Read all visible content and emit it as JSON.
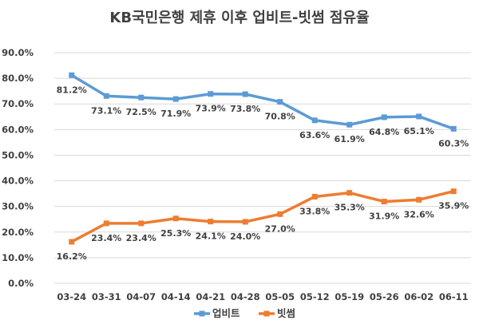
{
  "chart_data": {
    "type": "line",
    "title": "KB국민은행 제휴 이후 업비트-빗썸 점유율",
    "categories": [
      "03-24",
      "03-31",
      "04-07",
      "04-14",
      "04-21",
      "04-28",
      "05-05",
      "05-12",
      "05-19",
      "05-26",
      "06-02",
      "06-11"
    ],
    "ylim": [
      0,
      90
    ],
    "yticks": [
      "0.0%",
      "10.0%",
      "20.0%",
      "30.0%",
      "40.0%",
      "50.0%",
      "60.0%",
      "70.0%",
      "80.0%",
      "90.0%"
    ],
    "grid": true,
    "legend_position": "bottom",
    "series": [
      {
        "name": "업비트",
        "color": "#5b9bd5",
        "values": [
          81.2,
          73.1,
          72.5,
          71.9,
          73.9,
          73.8,
          70.8,
          63.6,
          61.9,
          64.8,
          65.1,
          60.3
        ],
        "labels": [
          "81.2%",
          "73.1%",
          "72.5%",
          "71.9%",
          "73.9%",
          "73.8%",
          "70.8%",
          "63.6%",
          "61.9%",
          "64.8%",
          "65.1%",
          "60.3%"
        ]
      },
      {
        "name": "빗썸",
        "color": "#ed7d31",
        "values": [
          16.2,
          23.4,
          23.4,
          25.3,
          24.1,
          24.0,
          27.0,
          33.8,
          35.3,
          31.9,
          32.6,
          35.9
        ],
        "labels": [
          "16.2%",
          "23.4%",
          "23.4%",
          "25.3%",
          "24.1%",
          "24.0%",
          "27.0%",
          "33.8%",
          "35.3%",
          "31.9%",
          "32.6%",
          "35.9%"
        ]
      }
    ]
  }
}
